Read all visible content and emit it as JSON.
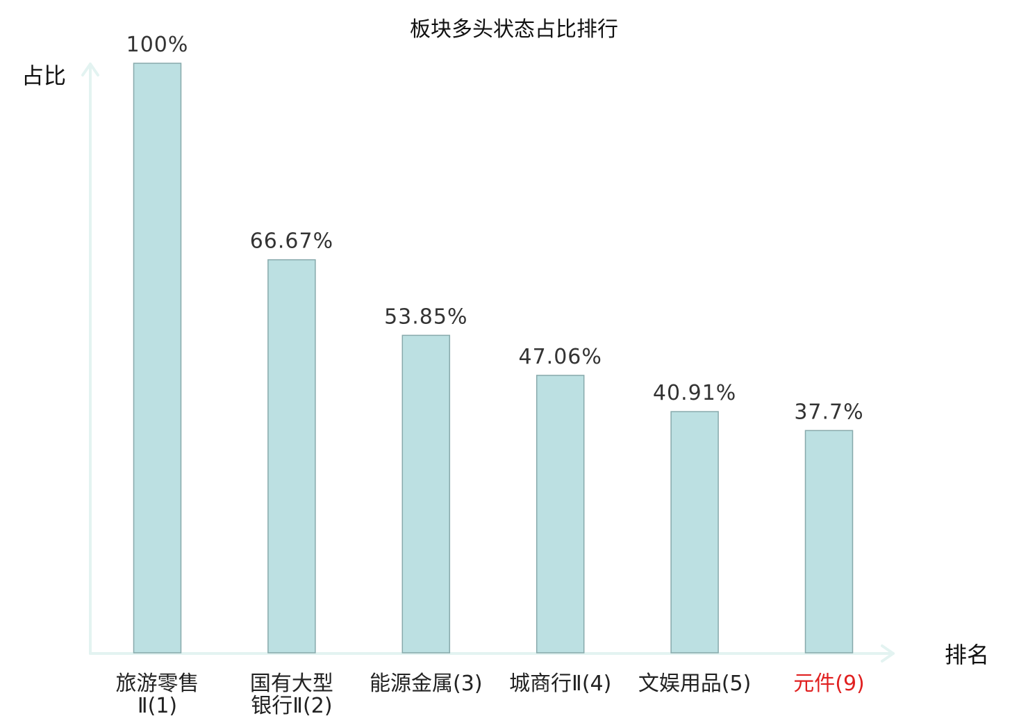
{
  "chart_data": {
    "type": "bar",
    "title": "板块多头状态占比排行",
    "ylabel": "占比",
    "xlabel": "排名",
    "ylim": [
      0,
      100
    ],
    "categories": [
      [
        "旅游零售",
        "Ⅱ(1)"
      ],
      [
        "国有大型",
        "银行Ⅱ(2)"
      ],
      [
        "能源金属(3)"
      ],
      [
        "城商行Ⅱ(4)"
      ],
      [
        "文娱用品(5)"
      ],
      [
        "元件(9)"
      ]
    ],
    "values": [
      100,
      66.67,
      53.85,
      47.06,
      40.91,
      37.7
    ],
    "value_labels": [
      "100%",
      "66.67%",
      "53.85%",
      "47.06%",
      "40.91%",
      "37.7%"
    ],
    "highlight_index": 5,
    "colors": {
      "bar_fill": "#bce0e2",
      "bar_stroke": "#87a9ab",
      "axis": "#e3f3f1",
      "highlight": "#e02020"
    },
    "grid": false,
    "legend": "none"
  }
}
